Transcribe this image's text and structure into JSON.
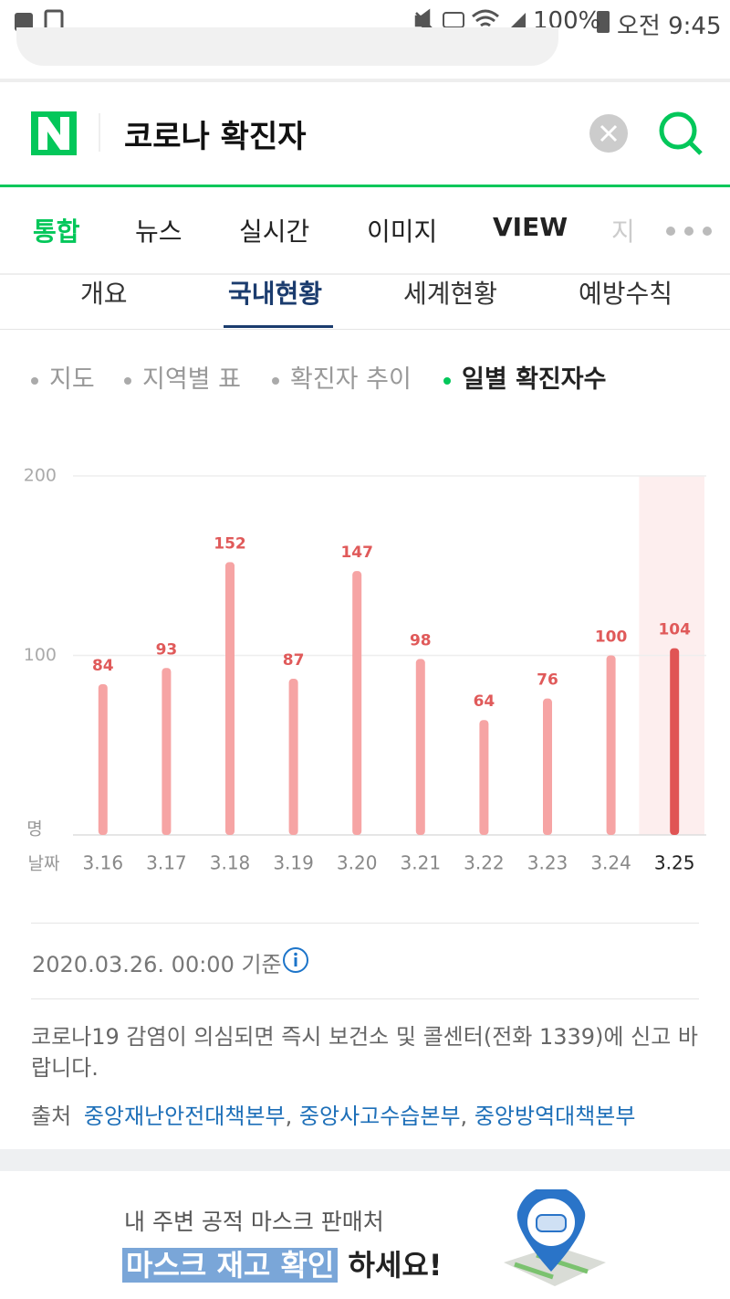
{
  "status_bar": {
    "battery": "100%",
    "time": "오전 9:45"
  },
  "search": {
    "query": "코로나 확진자"
  },
  "tabs": [
    "통합",
    "뉴스",
    "실시간",
    "이미지",
    "VIEW",
    "지"
  ],
  "subtabs": [
    "개요",
    "국내현황",
    "세계현황",
    "예방수칙"
  ],
  "views": [
    "지도",
    "지역별 표",
    "확진자 추이",
    "일별 확진자수"
  ],
  "chart_data": {
    "type": "bar",
    "y_unit": "명",
    "x_label": "날짜",
    "categories": [
      "3.16",
      "3.17",
      "3.18",
      "3.19",
      "3.20",
      "3.21",
      "3.22",
      "3.23",
      "3.24",
      "3.25"
    ],
    "values": [
      84,
      93,
      152,
      87,
      147,
      98,
      64,
      76,
      100,
      104
    ],
    "colors": [
      "#f6a4a4",
      "#f6a4a4",
      "#f6a4a4",
      "#f6a4a4",
      "#f6a4a4",
      "#f6a4a4",
      "#f6a4a4",
      "#f6a4a4",
      "#f6a4a4",
      "#e05454"
    ],
    "label_color": "#e05a5a",
    "ylim": [
      0,
      200
    ],
    "yticks": [
      100,
      200
    ],
    "grid": true
  },
  "info": {
    "timestamp": "2020.03.26. 00:00 기준",
    "notice": "코로나19 감염이 의심되면 즉시 보건소 및 콜센터(전화 1339)에 신고 바랍니다.",
    "source_label": "출처",
    "sources": [
      "중앙재난안전대책본부",
      "중앙사고수습본부",
      "중앙방역대책본부"
    ],
    "separator": ","
  },
  "banner": {
    "subtitle": "내 주변 공적 마스크 판매처",
    "highlight": "마스크 재고 확인",
    "suffix": "하세요!"
  }
}
